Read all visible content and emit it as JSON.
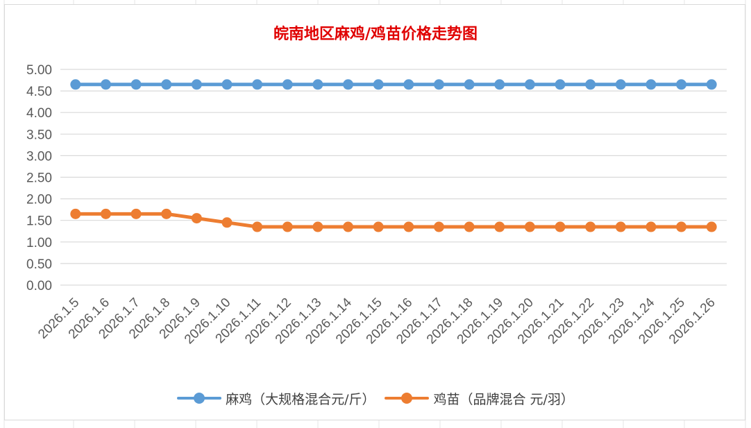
{
  "chart_data": {
    "type": "line",
    "title": "皖南地区麻鸡/鸡苗价格走势图",
    "categories": [
      "2026.1.5",
      "2026.1.6",
      "2026.1.7",
      "2026.1.8",
      "2026.1.9",
      "2026.1.10",
      "2026.1.11",
      "2026.1.12",
      "2026.1.13",
      "2026.1.14",
      "2026.1.15",
      "2026.1.16",
      "2026.1.17",
      "2026.1.18",
      "2026.1.19",
      "2026.1.20",
      "2026.1.21",
      "2026.1.22",
      "2026.1.23",
      "2026.1.24",
      "2026.1.25",
      "2026.1.26"
    ],
    "series": [
      {
        "name": "麻鸡（大规格混合元/斤）",
        "color": "#5b9bd5",
        "values": [
          4.65,
          4.65,
          4.65,
          4.65,
          4.65,
          4.65,
          4.65,
          4.65,
          4.65,
          4.65,
          4.65,
          4.65,
          4.65,
          4.65,
          4.65,
          4.65,
          4.65,
          4.65,
          4.65,
          4.65,
          4.65,
          4.65
        ]
      },
      {
        "name": "鸡苗（品牌混合 元/羽）",
        "color": "#ed7d31",
        "values": [
          1.65,
          1.65,
          1.65,
          1.65,
          1.55,
          1.45,
          1.35,
          1.35,
          1.35,
          1.35,
          1.35,
          1.35,
          1.35,
          1.35,
          1.35,
          1.35,
          1.35,
          1.35,
          1.35,
          1.35,
          1.35,
          1.35
        ]
      }
    ],
    "y_ticks": [
      "0.00",
      "0.50",
      "1.00",
      "1.50",
      "2.00",
      "2.50",
      "3.00",
      "3.50",
      "4.00",
      "4.50",
      "5.00"
    ],
    "ylim": [
      0,
      5
    ],
    "grid": true,
    "legend_position": "bottom",
    "title_color": "#e00000",
    "grid_color": "#d9d9d9"
  }
}
